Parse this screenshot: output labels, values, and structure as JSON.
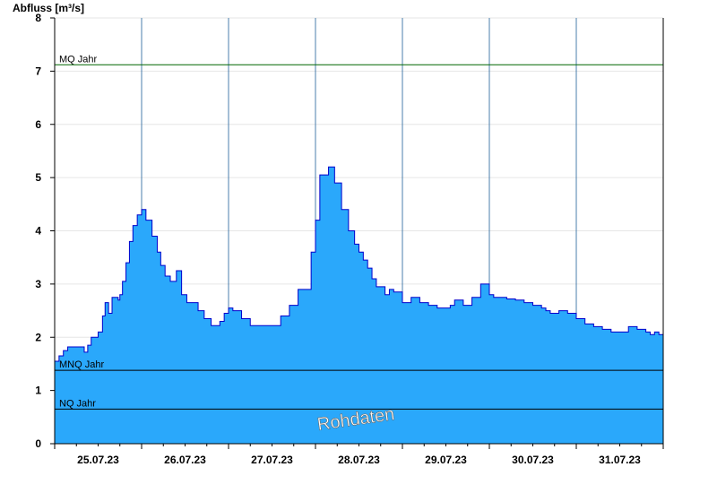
{
  "chart_data": {
    "type": "area",
    "title": "",
    "ylabel": "Abfluss [m³/s]",
    "xlabel": "",
    "ylim": [
      0,
      8
    ],
    "xlim": [
      0,
      7
    ],
    "yticks": [
      0,
      1,
      2,
      3,
      4,
      5,
      6,
      7,
      8
    ],
    "date_labels": [
      "25.07.23",
      "26.07.23",
      "27.07.23",
      "28.07.23",
      "29.07.23",
      "30.07.23",
      "31.07.23"
    ],
    "grid": true,
    "fill_color": "#2aa8fb",
    "line_color": "#0000cc",
    "reference_lines": [
      {
        "label": "MQ Jahr",
        "value": 7.12,
        "color": "#006600"
      },
      {
        "label": "MNQ Jahr",
        "value": 1.38,
        "color": "#000000"
      },
      {
        "label": "NQ Jahr",
        "value": 0.65,
        "color": "#000000"
      }
    ],
    "watermark": "Rohdaten",
    "series": [
      {
        "x": [
          0.0,
          0.05,
          0.1,
          0.15,
          0.22,
          0.3,
          0.34,
          0.38,
          0.42,
          0.5,
          0.55,
          0.58,
          0.62,
          0.66,
          0.7,
          0.73,
          0.75,
          0.78,
          0.82,
          0.86,
          0.9,
          0.95,
          1.0,
          1.05,
          1.12,
          1.18,
          1.22,
          1.27,
          1.33,
          1.4,
          1.46,
          1.52,
          1.57,
          1.6,
          1.65,
          1.72,
          1.8,
          1.85,
          1.9,
          1.95,
          2.0,
          2.05,
          2.15,
          2.25,
          2.32,
          2.4,
          2.5,
          2.6,
          2.7,
          2.8,
          2.95,
          3.0,
          3.05,
          3.15,
          3.22,
          3.3,
          3.38,
          3.45,
          3.5,
          3.55,
          3.6,
          3.65,
          3.7,
          3.8,
          3.85,
          3.9,
          4.0,
          4.1,
          4.2,
          4.3,
          4.4,
          4.45,
          4.55,
          4.6,
          4.7,
          4.8,
          4.9,
          5.0,
          5.05,
          5.12,
          5.2,
          5.3,
          5.4,
          5.5,
          5.6,
          5.65,
          5.7,
          5.8,
          5.9,
          6.0,
          6.1,
          6.2,
          6.3,
          6.4,
          6.5,
          6.6,
          6.7,
          6.8,
          6.85,
          6.9,
          6.95,
          7.0
        ],
        "values": [
          1.55,
          1.65,
          1.75,
          1.82,
          1.82,
          1.82,
          1.72,
          1.85,
          2.0,
          2.1,
          2.4,
          2.65,
          2.45,
          2.75,
          2.75,
          2.7,
          2.8,
          3.05,
          3.4,
          3.8,
          4.1,
          4.3,
          4.4,
          4.2,
          3.9,
          3.6,
          3.35,
          3.15,
          3.05,
          3.25,
          2.8,
          2.65,
          2.65,
          2.65,
          2.5,
          2.35,
          2.22,
          2.22,
          2.3,
          2.45,
          2.55,
          2.5,
          2.35,
          2.22,
          2.22,
          2.22,
          2.22,
          2.4,
          2.6,
          2.9,
          3.6,
          4.2,
          5.05,
          5.2,
          4.9,
          4.4,
          4.0,
          3.75,
          3.6,
          3.45,
          3.3,
          3.1,
          2.95,
          2.8,
          2.9,
          2.85,
          2.65,
          2.75,
          2.65,
          2.6,
          2.55,
          2.55,
          2.6,
          2.7,
          2.6,
          2.75,
          3.0,
          2.8,
          2.75,
          2.75,
          2.72,
          2.7,
          2.65,
          2.6,
          2.55,
          2.5,
          2.45,
          2.5,
          2.45,
          2.35,
          2.25,
          2.2,
          2.15,
          2.1,
          2.1,
          2.2,
          2.15,
          2.1,
          2.05,
          2.1,
          2.05,
          2.1
        ]
      }
    ]
  }
}
